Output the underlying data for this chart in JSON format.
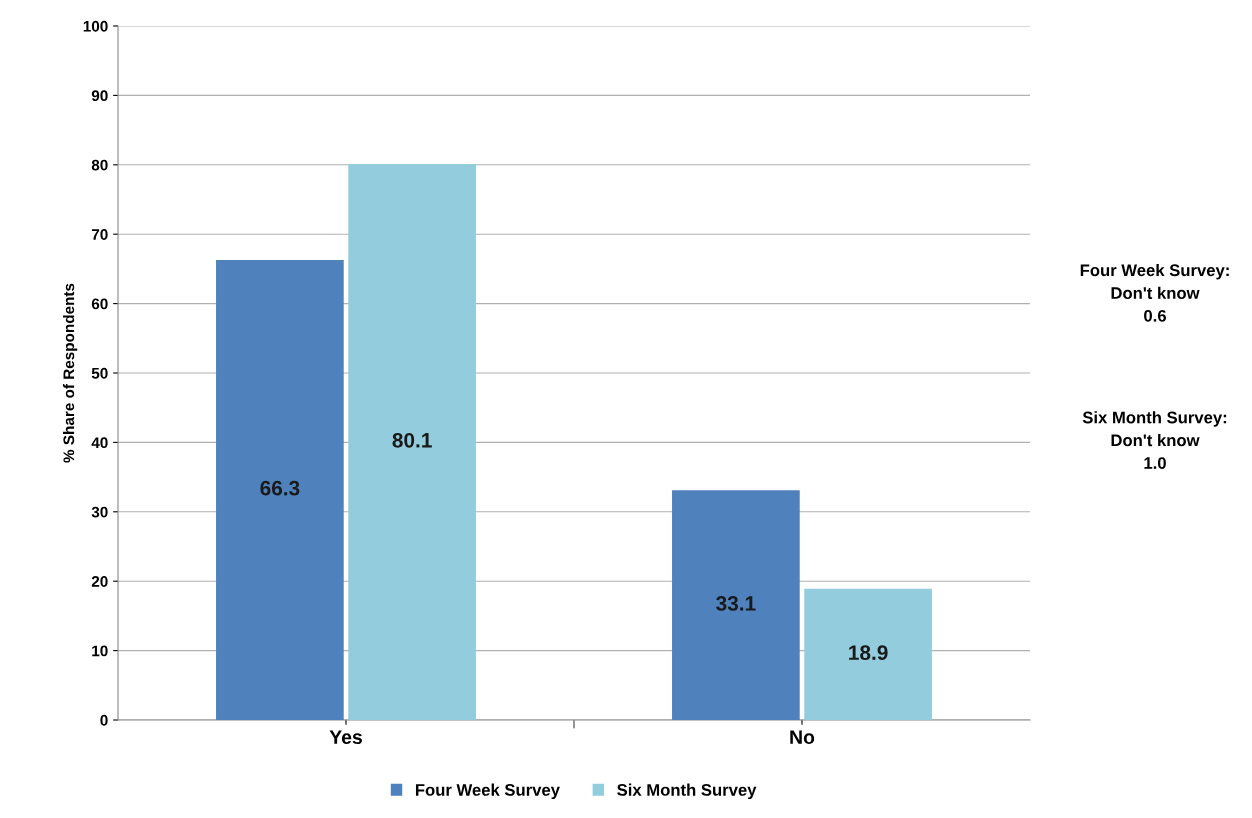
{
  "chart_data": {
    "type": "bar",
    "ylabel": "% Share of Respondents",
    "categories": [
      "Yes",
      "No"
    ],
    "series": [
      {
        "name": "Four Week Survey",
        "color": "#4f81bd",
        "values": [
          66.3,
          33.1
        ]
      },
      {
        "name": "Six Month Survey",
        "color": "#93cddd",
        "values": [
          80.1,
          18.9
        ]
      }
    ],
    "ylim": [
      0,
      100
    ],
    "yticks": [
      0,
      10,
      20,
      30,
      40,
      50,
      60,
      70,
      80,
      90,
      100
    ],
    "grid": "y",
    "legend": "bottom",
    "data_labels": true,
    "annotations": [
      "Four Week Survey:\nDon't know\n0.6",
      "Six Month Survey:\nDon't know\n1.0"
    ]
  }
}
